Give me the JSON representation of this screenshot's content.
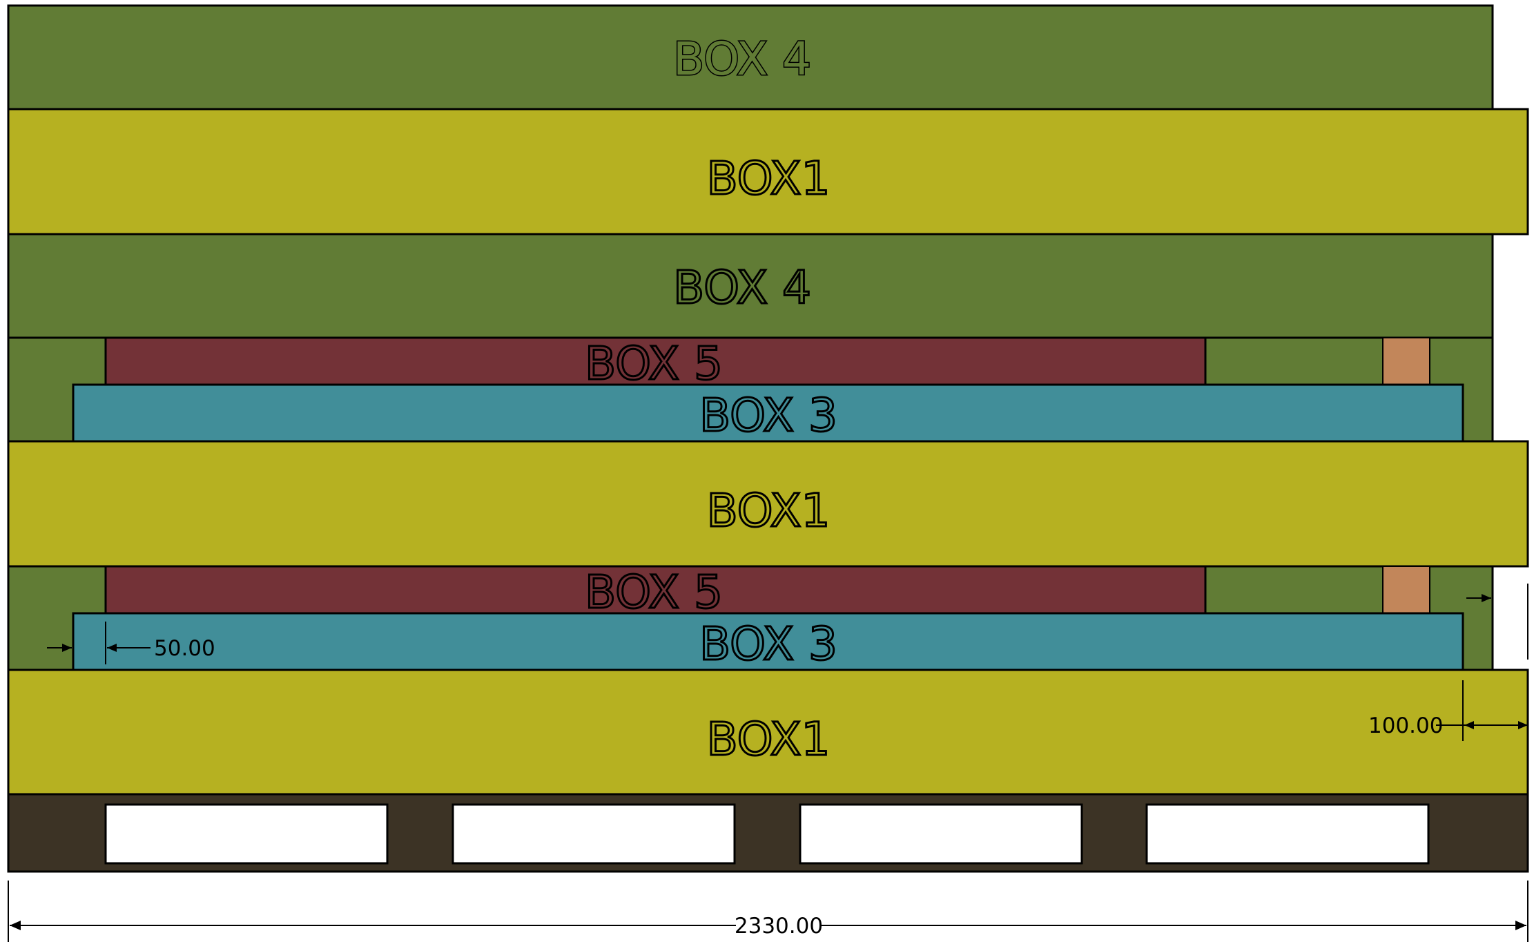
{
  "boxes": [
    {
      "label": "BOX 4",
      "type": "box4"
    },
    {
      "label": "BOX1",
      "type": "box1"
    },
    {
      "label": "BOX 4",
      "type": "box4"
    },
    {
      "label": "BOX 5",
      "type": "box5"
    },
    {
      "label": "BOX 3",
      "type": "box3"
    },
    {
      "label": "BOX1",
      "type": "box1"
    },
    {
      "label": "BOX 5",
      "type": "box5"
    },
    {
      "label": "BOX 3",
      "type": "box3"
    },
    {
      "label": "BOX1",
      "type": "box1"
    }
  ],
  "dimensions": {
    "overhang_left": "50.00",
    "overhang_right": "100.00",
    "overall_width": "2330.00"
  },
  "colors": {
    "box4": "#617c35",
    "box1": "#b6b121",
    "box5": "#733237",
    "box3": "#418e99",
    "spacer": "#c2865a",
    "pallet": "#3c3325",
    "outline": "#000000"
  }
}
